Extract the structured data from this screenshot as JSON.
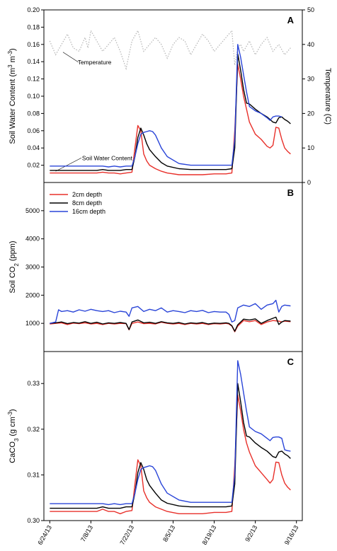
{
  "chart_data": [
    {
      "type": "line",
      "panel_label": "A",
      "ylabel_main": "Soil Water Content (m",
      "ylabel_sup1": "3",
      "ylabel_mid": " m",
      "ylabel_sup2": "-3",
      "ylabel_end": ")",
      "y2label": "Temperature (C)",
      "ylim": [
        0,
        0.2
      ],
      "yticks": [
        "0.02",
        "0.04",
        "0.06",
        "0.08",
        "0.10",
        "0.12",
        "0.14",
        "0.16",
        "0.18",
        "0.20"
      ],
      "y2lim": [
        0,
        50
      ],
      "y2ticks": [
        "0",
        "10",
        "20",
        "30",
        "40",
        "50"
      ],
      "annotations": [
        {
          "text": "Temperature",
          "x": 9.5,
          "y": 0.137,
          "ax": 4.5,
          "ay": 0.151
        },
        {
          "text": "Soil Water Content",
          "x": 11,
          "y": 0.026,
          "ax": 2,
          "ay": 0.013
        }
      ],
      "temperature": {
        "x": [
          0,
          2,
          4,
          6,
          8,
          10,
          12,
          13,
          14,
          16,
          18,
          20,
          22,
          24,
          26,
          28,
          30,
          32,
          34,
          36,
          38,
          40,
          42,
          44,
          46,
          48,
          50,
          52,
          54,
          56,
          58,
          60,
          62,
          63,
          64,
          65,
          66,
          68,
          70,
          72,
          74,
          76,
          78,
          80,
          82
        ],
        "y": [
          41,
          37,
          40,
          43,
          39,
          38,
          42,
          39,
          44,
          41,
          38,
          40,
          42,
          38,
          33,
          41,
          44,
          38,
          40,
          42,
          40,
          36,
          40,
          42,
          41,
          37,
          40,
          43,
          41,
          38,
          40,
          42,
          44,
          34,
          39,
          40,
          38,
          41,
          37,
          40,
          42,
          38,
          40,
          37,
          39
        ]
      },
      "series": [
        {
          "name": "2cm depth",
          "color": "#e8302a",
          "x": [
            0,
            4,
            8,
            12,
            16,
            18,
            20,
            22,
            24,
            26,
            28,
            29,
            30,
            31,
            32,
            33,
            34,
            36,
            38,
            40,
            44,
            48,
            52,
            56,
            60,
            62,
            63,
            64,
            65,
            66,
            67,
            68,
            70,
            72,
            74,
            75,
            76,
            77,
            78,
            79,
            80,
            81,
            82
          ],
          "y": [
            0.011,
            0.011,
            0.011,
            0.011,
            0.011,
            0.012,
            0.011,
            0.011,
            0.01,
            0.011,
            0.012,
            0.04,
            0.066,
            0.06,
            0.033,
            0.025,
            0.02,
            0.016,
            0.013,
            0.011,
            0.009,
            0.009,
            0.009,
            0.01,
            0.01,
            0.011,
            0.06,
            0.137,
            0.12,
            0.1,
            0.085,
            0.07,
            0.056,
            0.05,
            0.042,
            0.04,
            0.043,
            0.064,
            0.063,
            0.05,
            0.04,
            0.036,
            0.033
          ]
        },
        {
          "name": "8cm depth",
          "color": "#000000",
          "x": [
            0,
            4,
            8,
            12,
            16,
            18,
            20,
            22,
            24,
            26,
            28,
            29,
            30,
            31,
            32,
            33,
            34,
            36,
            38,
            40,
            44,
            48,
            52,
            56,
            60,
            62,
            63,
            64,
            65,
            66,
            67,
            68,
            70,
            72,
            74,
            75,
            76,
            77,
            78,
            79,
            80,
            81,
            82
          ],
          "y": [
            0.014,
            0.014,
            0.014,
            0.014,
            0.014,
            0.015,
            0.014,
            0.014,
            0.014,
            0.015,
            0.015,
            0.03,
            0.052,
            0.063,
            0.055,
            0.045,
            0.038,
            0.03,
            0.023,
            0.019,
            0.016,
            0.015,
            0.015,
            0.015,
            0.015,
            0.016,
            0.04,
            0.149,
            0.13,
            0.108,
            0.092,
            0.091,
            0.085,
            0.08,
            0.076,
            0.073,
            0.07,
            0.069,
            0.075,
            0.076,
            0.073,
            0.071,
            0.068
          ]
        },
        {
          "name": "16cm depth",
          "color": "#2a45d8",
          "x": [
            0,
            4,
            8,
            12,
            16,
            18,
            20,
            22,
            24,
            26,
            28,
            29,
            30,
            31,
            32,
            33,
            34,
            35,
            36,
            38,
            40,
            44,
            48,
            52,
            56,
            60,
            62,
            63,
            64,
            65,
            66,
            67,
            68,
            70,
            72,
            74,
            75,
            76,
            77,
            78,
            79
          ],
          "y": [
            0.019,
            0.019,
            0.019,
            0.019,
            0.019,
            0.019,
            0.018,
            0.019,
            0.018,
            0.019,
            0.019,
            0.03,
            0.045,
            0.056,
            0.058,
            0.059,
            0.06,
            0.059,
            0.055,
            0.04,
            0.03,
            0.022,
            0.02,
            0.02,
            0.02,
            0.02,
            0.02,
            0.05,
            0.16,
            0.145,
            0.125,
            0.105,
            0.088,
            0.083,
            0.08,
            0.075,
            0.072,
            0.076,
            0.077,
            0.077,
            0.076
          ]
        }
      ],
      "segments_broken": true
    },
    {
      "type": "line",
      "panel_label": "B",
      "ylabel_main": "Soil CO",
      "ylabel_sub": "2",
      "ylabel_end": " (ppm)",
      "ylim": [
        0,
        6000
      ],
      "yticks": [
        "1000",
        "2000",
        "3000",
        "4000",
        "5000"
      ],
      "legend": [
        {
          "label": "2cm depth",
          "color": "#e8302a"
        },
        {
          "label": "8cm depth",
          "color": "#000000"
        },
        {
          "label": "16cm depth",
          "color": "#2a45d8"
        }
      ],
      "series": [
        {
          "name": "2cm depth",
          "color": "#e8302a",
          "x": [
            0,
            2,
            4,
            6,
            8,
            10,
            12,
            14,
            16,
            18,
            20,
            22,
            24,
            26,
            27,
            28,
            30,
            32,
            34,
            36,
            38,
            40,
            42,
            44,
            46,
            48,
            50,
            52,
            54,
            56,
            58,
            60,
            61,
            62,
            63,
            64,
            66,
            68,
            70,
            72,
            74,
            76,
            78,
            79,
            80,
            82
          ],
          "y": [
            980,
            1000,
            1020,
            960,
            1010,
            990,
            1020,
            980,
            1000,
            960,
            1000,
            980,
            1000,
            990,
            770,
            1000,
            1050,
            990,
            1000,
            980,
            1040,
            1000,
            980,
            1000,
            960,
            1000,
            980,
            1000,
            960,
            990,
            980,
            1000,
            980,
            900,
            700,
            900,
            1100,
            1060,
            1100,
            960,
            1050,
            1100,
            1080,
            1050,
            1080,
            1060
          ]
        },
        {
          "name": "8cm depth",
          "color": "#000000",
          "x": [
            0,
            2,
            4,
            6,
            8,
            10,
            12,
            14,
            16,
            18,
            20,
            22,
            24,
            26,
            27,
            28,
            30,
            32,
            34,
            36,
            38,
            40,
            42,
            44,
            46,
            48,
            50,
            52,
            54,
            56,
            58,
            60,
            61,
            62,
            63,
            64,
            66,
            68,
            70,
            72,
            74,
            76,
            77,
            78,
            79,
            80,
            82
          ],
          "y": [
            1000,
            1020,
            1050,
            990,
            1030,
            1010,
            1060,
            1000,
            1040,
            980,
            1020,
            1000,
            1030,
            1000,
            780,
            1050,
            1120,
            1020,
            1040,
            1000,
            1060,
            1020,
            1000,
            1030,
            980,
            1020,
            1000,
            1030,
            980,
            1010,
            1000,
            1020,
            1000,
            920,
            720,
            950,
            1150,
            1120,
            1160,
            1000,
            1100,
            1180,
            1220,
            960,
            1050,
            1100,
            1080
          ]
        },
        {
          "name": "16cm depth",
          "color": "#2a45d8",
          "x": [
            0,
            2,
            3,
            4,
            6,
            8,
            10,
            12,
            14,
            16,
            18,
            20,
            22,
            24,
            26,
            27,
            28,
            30,
            32,
            34,
            36,
            38,
            40,
            42,
            44,
            46,
            48,
            50,
            52,
            54,
            56,
            58,
            60,
            61,
            62,
            63,
            64,
            66,
            68,
            70,
            72,
            74,
            76,
            77,
            78,
            79,
            80,
            82
          ],
          "y": [
            1000,
            1050,
            1480,
            1420,
            1450,
            1400,
            1480,
            1430,
            1500,
            1450,
            1420,
            1450,
            1380,
            1430,
            1400,
            1250,
            1550,
            1600,
            1420,
            1500,
            1450,
            1550,
            1400,
            1450,
            1420,
            1380,
            1450,
            1420,
            1460,
            1380,
            1420,
            1400,
            1400,
            1320,
            1050,
            1100,
            1550,
            1650,
            1600,
            1700,
            1500,
            1650,
            1700,
            1820,
            1400,
            1600,
            1650,
            1620
          ]
        }
      ]
    },
    {
      "type": "line",
      "panel_label": "C",
      "ylabel_main": "CaCO",
      "ylabel_sub": "3",
      "ylabel_mid": " (g cm",
      "ylabel_sup": "-3",
      "ylabel_end": ")",
      "ylim": [
        0.3,
        0.337
      ],
      "yticks": [
        "0.30",
        "0.31",
        "0.32",
        "0.33"
      ],
      "xticks": [
        "6/24/13",
        "7/8/13",
        "7/22/13",
        "8/5/13",
        "8/19/13",
        "9/2/13",
        "9/16/13"
      ],
      "xtick_values": [
        0,
        14,
        28,
        42,
        56,
        70,
        84
      ],
      "xlim": [
        -2,
        86
      ],
      "series": [
        {
          "name": "2cm depth",
          "color": "#e8302a",
          "x": [
            0,
            4,
            8,
            12,
            16,
            18,
            20,
            22,
            24,
            26,
            28,
            29,
            30,
            31,
            32,
            33,
            34,
            36,
            38,
            40,
            44,
            48,
            52,
            56,
            60,
            62,
            63,
            64,
            65,
            66,
            67,
            68,
            70,
            72,
            74,
            75,
            76,
            77,
            78,
            79,
            80,
            81,
            82
          ],
          "y": [
            0.302,
            0.302,
            0.302,
            0.302,
            0.302,
            0.3025,
            0.302,
            0.302,
            0.3015,
            0.302,
            0.3022,
            0.308,
            0.3133,
            0.312,
            0.3065,
            0.305,
            0.304,
            0.303,
            0.3025,
            0.302,
            0.3015,
            0.3015,
            0.3015,
            0.3018,
            0.3018,
            0.302,
            0.312,
            0.3275,
            0.324,
            0.32,
            0.317,
            0.315,
            0.312,
            0.3105,
            0.309,
            0.3082,
            0.309,
            0.3128,
            0.3127,
            0.31,
            0.3082,
            0.3073,
            0.3067
          ]
        },
        {
          "name": "8cm depth",
          "color": "#000000",
          "x": [
            0,
            4,
            8,
            12,
            16,
            18,
            20,
            22,
            24,
            26,
            28,
            29,
            30,
            31,
            32,
            33,
            34,
            36,
            38,
            40,
            44,
            48,
            52,
            56,
            60,
            62,
            63,
            64,
            65,
            66,
            67,
            68,
            70,
            72,
            74,
            75,
            76,
            77,
            78,
            79,
            80,
            81,
            82
          ],
          "y": [
            0.3027,
            0.3027,
            0.3027,
            0.3027,
            0.3027,
            0.303,
            0.3027,
            0.3027,
            0.3027,
            0.303,
            0.303,
            0.306,
            0.3105,
            0.3127,
            0.3112,
            0.309,
            0.3077,
            0.306,
            0.3045,
            0.3038,
            0.3032,
            0.303,
            0.303,
            0.303,
            0.303,
            0.3032,
            0.308,
            0.33,
            0.326,
            0.3215,
            0.3185,
            0.3183,
            0.317,
            0.316,
            0.3152,
            0.3146,
            0.314,
            0.3138,
            0.315,
            0.3152,
            0.3146,
            0.3142,
            0.3136
          ]
        },
        {
          "name": "16cm depth",
          "color": "#2a45d8",
          "x": [
            0,
            4,
            8,
            12,
            16,
            18,
            20,
            22,
            24,
            26,
            28,
            29,
            30,
            31,
            32,
            33,
            34,
            35,
            36,
            38,
            40,
            44,
            48,
            52,
            56,
            60,
            62,
            63,
            64,
            65,
            66,
            67,
            68,
            70,
            72,
            74,
            75,
            76,
            77,
            78,
            79,
            80,
            81,
            82
          ],
          "y": [
            0.3037,
            0.3037,
            0.3037,
            0.3037,
            0.3037,
            0.3037,
            0.3035,
            0.3037,
            0.3035,
            0.3037,
            0.3037,
            0.306,
            0.309,
            0.3112,
            0.3116,
            0.3118,
            0.312,
            0.3118,
            0.311,
            0.308,
            0.306,
            0.3045,
            0.304,
            0.304,
            0.304,
            0.304,
            0.304,
            0.31,
            0.335,
            0.332,
            0.328,
            0.324,
            0.3205,
            0.3195,
            0.319,
            0.318,
            0.3175,
            0.3182,
            0.3183,
            0.3183,
            0.318,
            0.3155,
            0.3153,
            0.3152
          ]
        }
      ]
    }
  ],
  "colors": {
    "red": "#e8302a",
    "black": "#000000",
    "blue": "#2a45d8",
    "temperature": "#b4b4b4"
  }
}
